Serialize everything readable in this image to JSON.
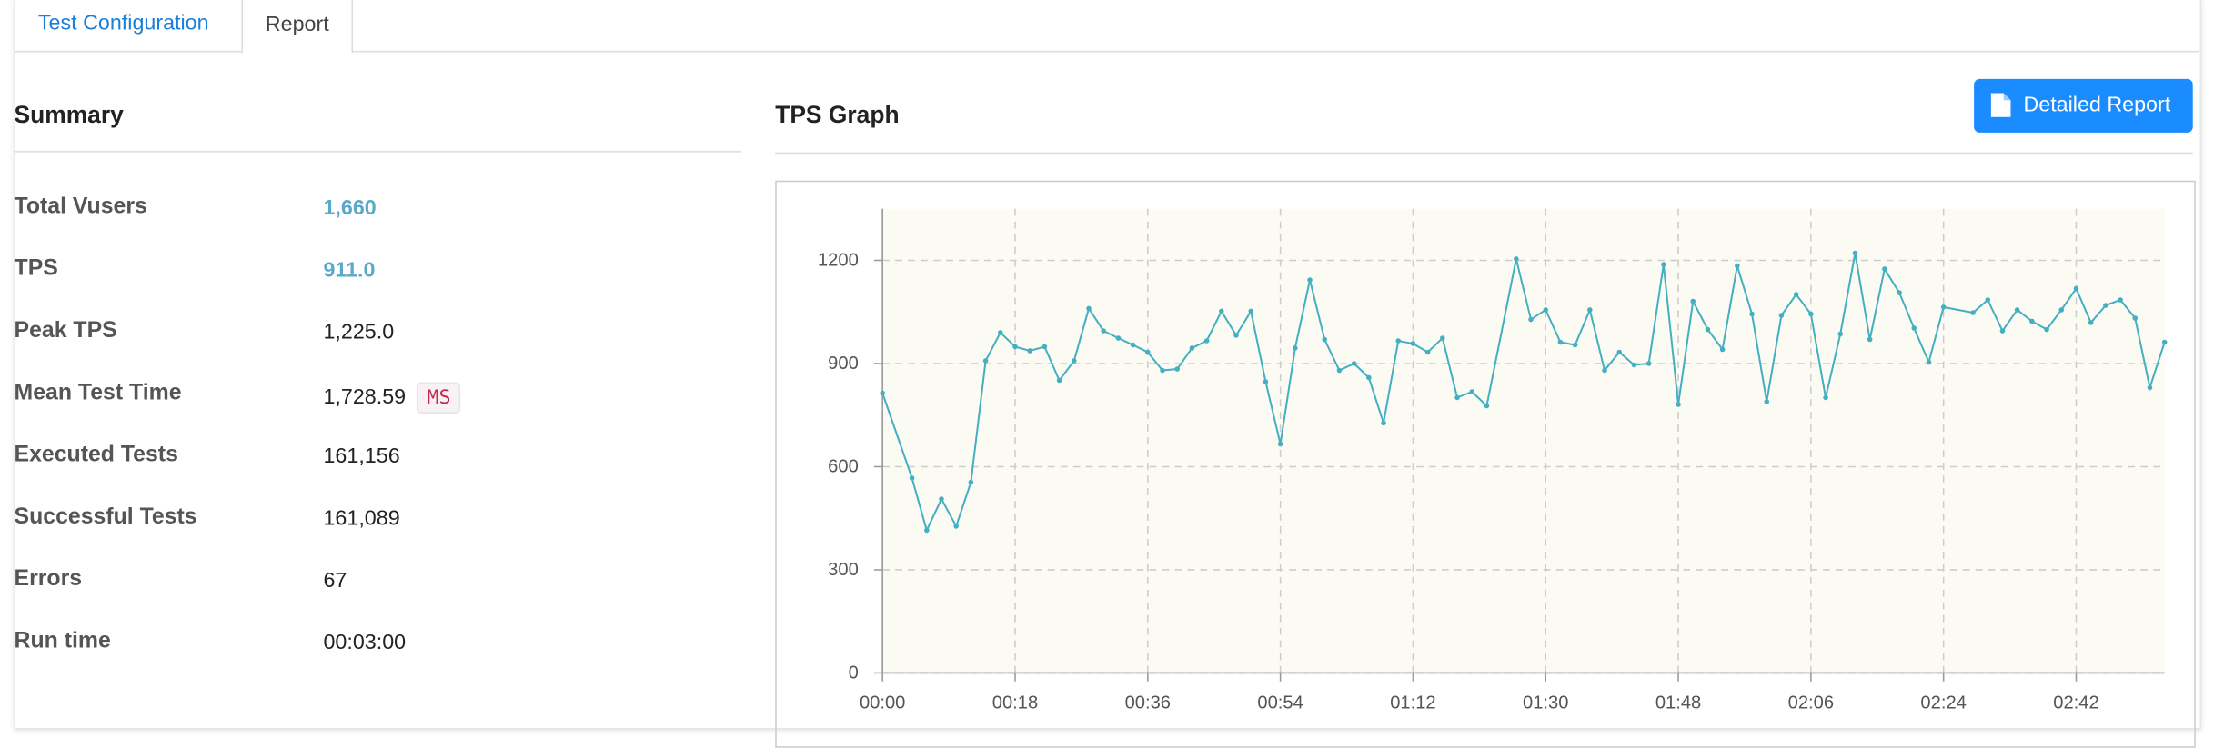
{
  "tabs": [
    "Test Configuration",
    "Report"
  ],
  "summary": {
    "title": "Summary",
    "rows": [
      {
        "label": "Total Vusers",
        "value": "1,660"
      },
      {
        "label": "TPS",
        "value": "911.0"
      },
      {
        "label": "Peak TPS",
        "value": "1,225.0"
      },
      {
        "label": "Mean Test Time",
        "value": "1,728.59",
        "unit": "MS"
      },
      {
        "label": "Executed Tests",
        "value": "161,156"
      },
      {
        "label": "Successful Tests",
        "value": "161,089"
      },
      {
        "label": "Errors",
        "value": "67"
      },
      {
        "label": "Run time",
        "value": "00:03:00"
      }
    ]
  },
  "button": {
    "label": "Detailed Report"
  },
  "chart_data": {
    "type": "line",
    "title": "TPS Graph",
    "color": "#45afc2",
    "grid": true,
    "x": [
      0,
      4,
      6,
      8,
      10,
      12,
      14,
      16,
      18,
      20,
      22,
      24,
      26,
      28,
      30,
      32,
      34,
      36,
      38,
      40,
      42,
      44,
      46,
      48,
      50,
      52,
      54,
      56,
      58,
      60,
      62,
      64,
      66,
      68,
      70,
      72,
      74,
      76,
      78,
      80,
      82,
      86,
      88,
      90,
      92,
      94,
      96,
      98,
      100,
      102,
      104,
      106,
      108,
      110,
      112,
      114,
      116,
      118,
      120,
      122,
      124,
      126,
      128,
      130,
      132,
      134,
      136,
      138,
      140,
      142,
      144,
      148,
      150,
      152,
      154,
      156,
      158,
      160,
      162,
      164,
      166,
      168,
      170,
      172,
      174
    ],
    "values": [
      814,
      567,
      415,
      506,
      427,
      555,
      908,
      990,
      949,
      937,
      949,
      851,
      908,
      1060,
      995,
      974,
      954,
      933,
      880,
      884,
      945,
      966,
      1052,
      982,
      1052,
      847,
      666,
      945,
      1143,
      970,
      880,
      900,
      859,
      727,
      966,
      958,
      933,
      974,
      801,
      818,
      777,
      1204,
      1028,
      1056,
      962,
      954,
      1056,
      880,
      933,
      896,
      900,
      1188,
      781,
      1081,
      999,
      941,
      1184,
      1044,
      789,
      1040,
      1101,
      1044,
      801,
      986,
      1221,
      970,
      1175,
      1106,
      1003,
      904,
      1064,
      1048,
      1085,
      995,
      1056,
      1023,
      999,
      1056,
      1118,
      1019,
      1069,
      1085,
      1032,
      830,
      962
    ],
    "xlim": [
      0,
      174
    ],
    "xticks": [
      {
        "value": 0,
        "label": "00:00"
      },
      {
        "value": 18,
        "label": "00:18"
      },
      {
        "value": 36,
        "label": "00:36"
      },
      {
        "value": 54,
        "label": "00:54"
      },
      {
        "value": 72,
        "label": "01:12"
      },
      {
        "value": 90,
        "label": "01:30"
      },
      {
        "value": 108,
        "label": "01:48"
      },
      {
        "value": 126,
        "label": "02:06"
      },
      {
        "value": 144,
        "label": "02:24"
      },
      {
        "value": 162,
        "label": "02:42"
      }
    ],
    "ylim": [
      0,
      1350
    ],
    "yticks": [
      0,
      300,
      600,
      900,
      1200
    ]
  }
}
